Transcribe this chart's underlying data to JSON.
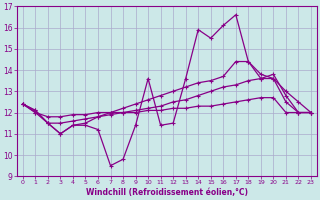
{
  "xlabel": "Windchill (Refroidissement éolien,°C)",
  "bg_color": "#cce8e8",
  "grid_color": "#aaaacc",
  "line_color": "#880088",
  "xlim": [
    -0.5,
    23.5
  ],
  "ylim": [
    9,
    17
  ],
  "yticks": [
    9,
    10,
    11,
    12,
    13,
    14,
    15,
    16,
    17
  ],
  "xticks": [
    0,
    1,
    2,
    3,
    4,
    5,
    6,
    7,
    8,
    9,
    10,
    11,
    12,
    13,
    14,
    15,
    16,
    17,
    18,
    19,
    20,
    21,
    22,
    23
  ],
  "series": [
    {
      "x": [
        0,
        1,
        2,
        3,
        4,
        5,
        6,
        7,
        8,
        9,
        10,
        11,
        12,
        13,
        14,
        15,
        16,
        17,
        18,
        19,
        20,
        21,
        22,
        23
      ],
      "y": [
        12.4,
        12.1,
        11.5,
        11.0,
        11.4,
        11.4,
        11.2,
        9.5,
        9.8,
        11.4,
        13.6,
        11.4,
        11.5,
        13.6,
        15.9,
        15.5,
        16.1,
        16.6,
        14.4,
        13.6,
        13.6,
        12.5,
        12.0,
        12.0
      ]
    },
    {
      "x": [
        0,
        1,
        2,
        3,
        4,
        5,
        6,
        7,
        8,
        9,
        10,
        11,
        12,
        13,
        14,
        15,
        16,
        17,
        18,
        19,
        20,
        21,
        22,
        23
      ],
      "y": [
        12.4,
        12.1,
        11.5,
        11.0,
        11.4,
        11.5,
        11.8,
        12.0,
        12.2,
        12.4,
        12.6,
        12.8,
        13.0,
        13.2,
        13.4,
        13.5,
        13.7,
        14.4,
        14.4,
        13.8,
        13.6,
        13.0,
        12.5,
        12.0
      ]
    },
    {
      "x": [
        0,
        1,
        2,
        3,
        4,
        5,
        6,
        7,
        8,
        9,
        10,
        11,
        12,
        13,
        14,
        15,
        16,
        17,
        18,
        19,
        20,
        21,
        22,
        23
      ],
      "y": [
        12.4,
        12.0,
        11.5,
        11.5,
        11.6,
        11.7,
        11.8,
        11.9,
        12.0,
        12.1,
        12.2,
        12.3,
        12.5,
        12.6,
        12.8,
        13.0,
        13.2,
        13.3,
        13.5,
        13.6,
        13.8,
        12.8,
        12.0,
        12.0
      ]
    },
    {
      "x": [
        0,
        1,
        2,
        3,
        4,
        5,
        6,
        7,
        8,
        9,
        10,
        11,
        12,
        13,
        14,
        15,
        16,
        17,
        18,
        19,
        20,
        21,
        22,
        23
      ],
      "y": [
        12.4,
        12.0,
        11.8,
        11.8,
        11.9,
        11.9,
        12.0,
        12.0,
        12.0,
        12.0,
        12.1,
        12.1,
        12.2,
        12.2,
        12.3,
        12.3,
        12.4,
        12.5,
        12.6,
        12.7,
        12.7,
        12.0,
        12.0,
        12.0
      ]
    }
  ]
}
